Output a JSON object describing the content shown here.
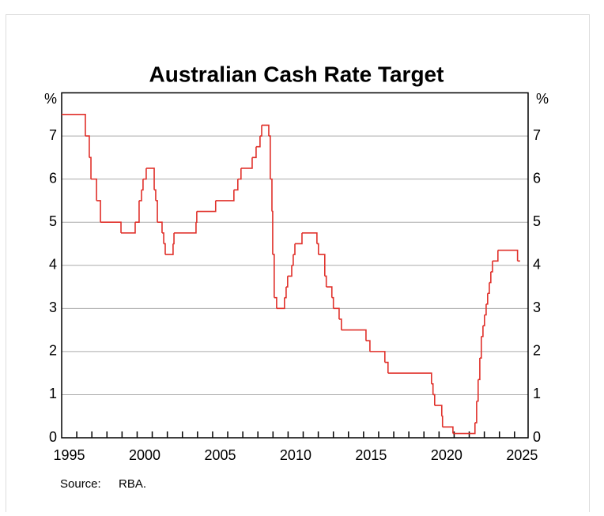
{
  "chart_data": {
    "type": "step-line",
    "title": "Australian Cash Rate Target",
    "y_unit": "%",
    "source_label": "Source:",
    "source": "RBA.",
    "xlim": [
      1995,
      2025.9
    ],
    "ylim": [
      0,
      8
    ],
    "yticks": [
      0,
      1,
      2,
      3,
      4,
      5,
      6,
      7
    ],
    "xticks": [
      {
        "value": 1995.5,
        "label": "1995"
      },
      {
        "value": 2000.5,
        "label": "2000"
      },
      {
        "value": 2005.5,
        "label": "2005"
      },
      {
        "value": 2010.5,
        "label": "2010"
      },
      {
        "value": 2015.5,
        "label": "2015"
      },
      {
        "value": 2020.5,
        "label": "2020"
      },
      {
        "value": 2025.5,
        "label": "2025"
      }
    ],
    "xminorticks": [
      1996,
      1997,
      1998,
      1999,
      2000,
      2001,
      2002,
      2003,
      2004,
      2005,
      2006,
      2007,
      2008,
      2009,
      2010,
      2011,
      2012,
      2013,
      2014,
      2015,
      2016,
      2017,
      2018,
      2019,
      2020,
      2021,
      2022,
      2023,
      2024,
      2025
    ],
    "grid": true,
    "series": [
      {
        "name": "Cash rate target",
        "color": "#e0302a",
        "x": [
          1995.0,
          1996.57,
          1996.83,
          1996.94,
          1997.31,
          1997.57,
          1998.93,
          1999.87,
          2000.13,
          2000.29,
          2000.39,
          2000.6,
          2001.13,
          2001.23,
          2001.34,
          2001.65,
          2001.76,
          2001.86,
          2002.38,
          2002.44,
          2003.9,
          2003.95,
          2005.2,
          2006.41,
          2006.67,
          2006.88,
          2007.62,
          2007.88,
          2008.14,
          2008.25,
          2008.72,
          2008.82,
          2008.93,
          2008.98,
          2009.08,
          2009.24,
          2009.76,
          2009.87,
          2009.97,
          2010.24,
          2010.34,
          2010.45,
          2010.92,
          2011.91,
          2012.01,
          2012.43,
          2012.53,
          2012.9,
          2013.0,
          2013.38,
          2013.53,
          2015.16,
          2015.42,
          2016.41,
          2016.62,
          2019.5,
          2019.6,
          2019.71,
          2020.18,
          2020.23,
          2020.92,
          2022.38,
          2022.49,
          2022.59,
          2022.7,
          2022.8,
          2022.91,
          2023.01,
          2023.12,
          2023.22,
          2023.33,
          2023.43,
          2023.54,
          2023.9,
          2025.2,
          2025.37
        ],
        "values": [
          7.5,
          7.0,
          6.5,
          6.0,
          5.5,
          5.0,
          4.75,
          5.0,
          5.5,
          5.75,
          6.0,
          6.25,
          5.75,
          5.5,
          5.0,
          4.75,
          4.5,
          4.25,
          4.5,
          4.75,
          5.0,
          5.25,
          5.5,
          5.75,
          6.0,
          6.25,
          6.5,
          6.75,
          7.0,
          7.25,
          7.0,
          6.0,
          5.25,
          4.25,
          3.25,
          3.0,
          3.25,
          3.5,
          3.75,
          4.0,
          4.25,
          4.5,
          4.75,
          4.5,
          4.25,
          3.75,
          3.5,
          3.25,
          3.0,
          2.75,
          2.5,
          2.25,
          2.0,
          1.75,
          1.5,
          1.25,
          1.0,
          0.75,
          0.5,
          0.25,
          0.1,
          0.35,
          0.85,
          1.35,
          1.85,
          2.35,
          2.6,
          2.85,
          3.1,
          3.35,
          3.6,
          3.85,
          4.1,
          4.35,
          4.1,
          4.1
        ]
      }
    ]
  }
}
